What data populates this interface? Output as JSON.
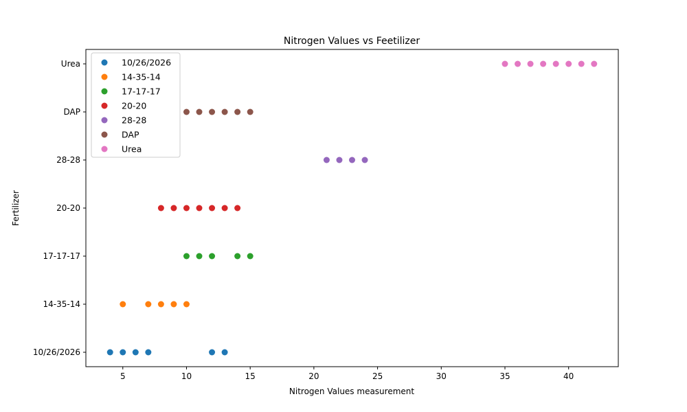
{
  "chart_data": {
    "type": "scatter",
    "title": "Nitrogen Values vs Feetilizer",
    "xlabel": "Nitrogen Values measurement",
    "ylabel": "Fertilizer",
    "xlim": [
      2.1,
      43.9
    ],
    "xticks": [
      5,
      10,
      15,
      20,
      25,
      30,
      35,
      40
    ],
    "categories": [
      "10/26/2026",
      "14-35-14",
      "17-17-17",
      "20-20",
      "28-28",
      "DAP",
      "Urea"
    ],
    "grid": false,
    "legend_position": "top-left",
    "series": [
      {
        "name": "10/26/2026",
        "color": "#1f77b4",
        "category": "10/26/2026",
        "x": [
          4,
          5,
          6,
          7,
          12,
          13
        ]
      },
      {
        "name": "14-35-14",
        "color": "#ff7f0e",
        "category": "14-35-14",
        "x": [
          5,
          7,
          8,
          9,
          10
        ]
      },
      {
        "name": "17-17-17",
        "color": "#2ca02c",
        "category": "17-17-17",
        "x": [
          10,
          11,
          12,
          14,
          15
        ]
      },
      {
        "name": "20-20",
        "color": "#d62728",
        "category": "20-20",
        "x": [
          8,
          9,
          10,
          11,
          12,
          13,
          14
        ]
      },
      {
        "name": "28-28",
        "color": "#9467bd",
        "category": "28-28",
        "x": [
          21,
          22,
          23,
          24
        ]
      },
      {
        "name": "DAP",
        "color": "#8c564b",
        "category": "DAP",
        "x": [
          10,
          11,
          12,
          13,
          14,
          15
        ]
      },
      {
        "name": "Urea",
        "color": "#e377c2",
        "category": "Urea",
        "x": [
          35,
          36,
          37,
          38,
          39,
          40,
          41,
          42
        ]
      }
    ]
  }
}
